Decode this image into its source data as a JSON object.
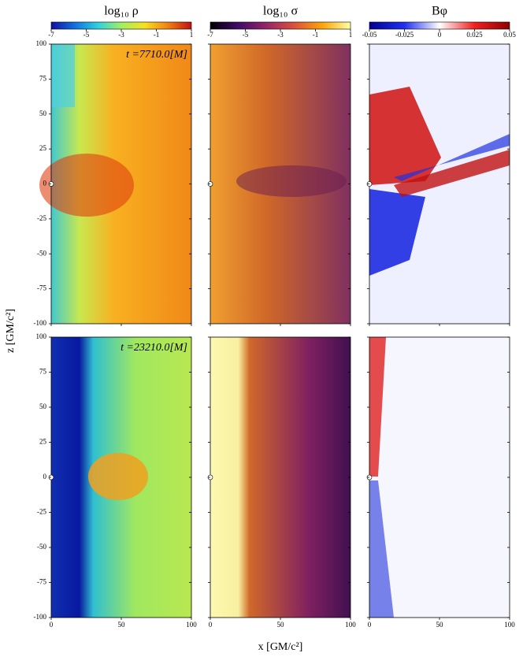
{
  "chart_data": {
    "type": "heatmap",
    "colorbars": [
      {
        "label": "log₁₀ ρ",
        "lim": [
          -7,
          1
        ],
        "ticks": [
          -7,
          -5,
          -3,
          -1,
          1
        ],
        "colors": [
          "#1010a0",
          "#1070e0",
          "#30d0e0",
          "#a0f060",
          "#f8e020",
          "#f08010",
          "#c01010"
        ]
      },
      {
        "label": "log₁₀ σ",
        "lim": [
          -7,
          1
        ],
        "ticks": [
          -7,
          -5,
          -3,
          -1,
          1
        ],
        "colors": [
          "#000004",
          "#420a68",
          "#932667",
          "#dd513a",
          "#fca50a",
          "#fcffa4"
        ]
      },
      {
        "label": "Bφ",
        "lim": [
          -0.05,
          0.05
        ],
        "ticks": [
          -0.05,
          -0.025,
          0,
          0.025,
          0.05
        ],
        "colors": [
          "#000090",
          "#2030f0",
          "#ffffff",
          "#f02020",
          "#900000"
        ]
      }
    ],
    "annotations": [
      "t =7710.0[M]",
      "t =23210.0[M]"
    ],
    "xlabel": "x [GM/c²]",
    "ylabel": "z [GM/c²]",
    "xlim": [
      0,
      100
    ],
    "xticks": [
      0,
      50,
      100
    ],
    "ylim": [
      -100,
      100
    ],
    "yticks": [
      100,
      75,
      50,
      25,
      0,
      -25,
      -50,
      -75,
      -100
    ]
  }
}
